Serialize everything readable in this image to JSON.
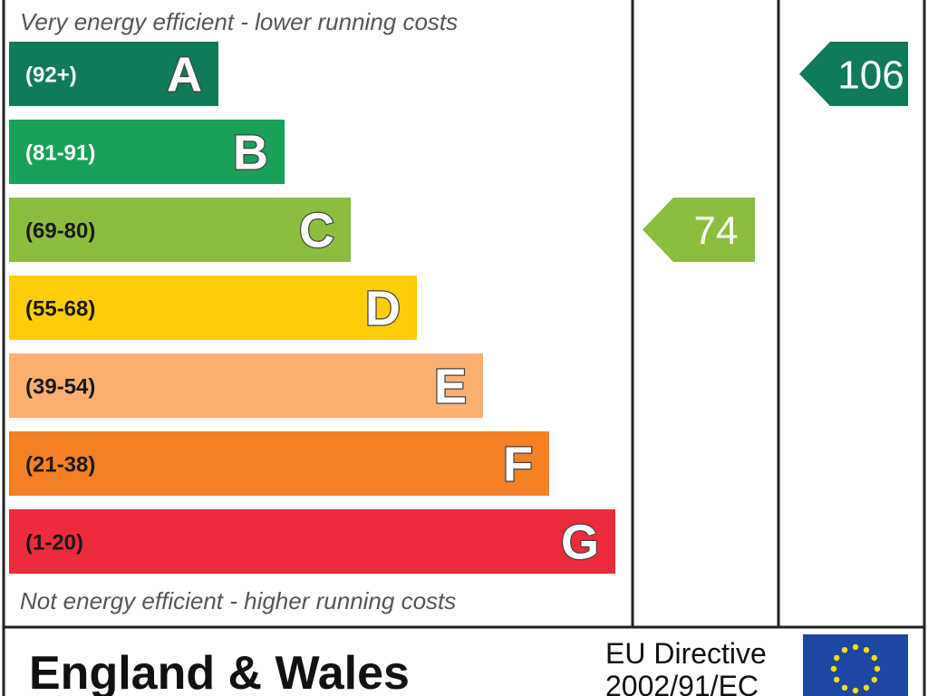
{
  "chart_data": {
    "type": "bar",
    "top_caption": "Very energy efficient - lower running costs",
    "bottom_caption": "Not energy efficient - higher running costs",
    "bands": [
      {
        "letter": "A",
        "range": "(92+)",
        "color": "#107a5a",
        "range_color": "#ffffff"
      },
      {
        "letter": "B",
        "range": "(81-91)",
        "color": "#1aa05a",
        "range_color": "#ffffff"
      },
      {
        "letter": "C",
        "range": "(69-80)",
        "color": "#8dbd3f",
        "range_color": "#1a1a1a"
      },
      {
        "letter": "D",
        "range": "(55-68)",
        "color": "#fecd0a",
        "range_color": "#1a1a1a"
      },
      {
        "letter": "E",
        "range": "(39-54)",
        "color": "#fbb072",
        "range_color": "#1a1a1a"
      },
      {
        "letter": "F",
        "range": "(21-38)",
        "color": "#f48124",
        "range_color": "#1a1a1a"
      },
      {
        "letter": "G",
        "range": "(1-20)",
        "color": "#ec2b3c",
        "range_color": "#1a1a1a"
      }
    ],
    "ratings": [
      {
        "value": 74,
        "band": "C",
        "color": "#8dbd3f"
      },
      {
        "value": 106,
        "band": "A",
        "color": "#107a5a"
      }
    ]
  },
  "footer": {
    "region": "England & Wales",
    "directive_line1": "EU Directive",
    "directive_line2": "2002/91/EC"
  },
  "colors": {
    "border": "#222222",
    "eu_flag": "#1d47a3",
    "eu_stars": "#ffdd00"
  }
}
